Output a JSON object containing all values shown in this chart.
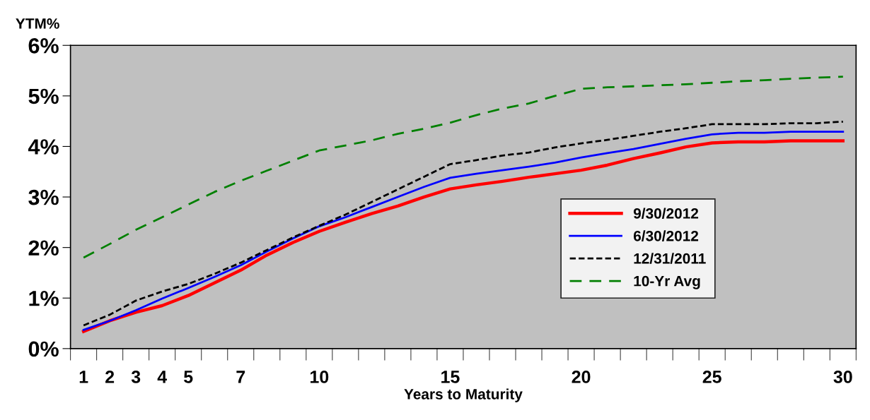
{
  "chart_data": {
    "type": "line",
    "ylabel": "YTM%",
    "xlabel": "Years to Maturity",
    "categories": [
      "1",
      "2",
      "3",
      "4",
      "5",
      null,
      "7",
      null,
      null,
      "10",
      null,
      null,
      null,
      null,
      "15",
      null,
      null,
      null,
      null,
      "20",
      null,
      null,
      null,
      null,
      "25",
      null,
      null,
      null,
      null,
      "30"
    ],
    "ylim": [
      0,
      6
    ],
    "yticks": [
      {
        "value": 0,
        "label": "0%"
      },
      {
        "value": 1,
        "label": "1%"
      },
      {
        "value": 2,
        "label": "2%"
      },
      {
        "value": 3,
        "label": "3%"
      },
      {
        "value": 4,
        "label": "4%"
      },
      {
        "value": 5,
        "label": "5%"
      },
      {
        "value": 6,
        "label": "6%"
      }
    ],
    "grid": false,
    "legend": "right",
    "marker": "none",
    "series": [
      {
        "name": "9/30/2012",
        "color": "#ff0000",
        "line_style": "solid",
        "values": [
          0.34,
          0.55,
          0.72,
          0.85,
          1.05,
          1.3,
          1.55,
          1.85,
          2.1,
          2.32,
          2.5,
          2.67,
          2.82,
          3.0,
          3.16,
          3.24,
          3.31,
          3.39,
          3.46,
          3.53,
          3.63,
          3.76,
          3.87,
          3.99,
          4.07,
          4.09,
          4.09,
          4.11,
          4.11,
          4.11
        ]
      },
      {
        "name": "6/30/2012",
        "color": "#0000ff",
        "line_style": "solid",
        "values": [
          0.37,
          0.55,
          0.76,
          0.99,
          1.2,
          1.42,
          1.65,
          1.92,
          2.18,
          2.42,
          2.6,
          2.8,
          3.0,
          3.2,
          3.38,
          3.46,
          3.53,
          3.6,
          3.68,
          3.78,
          3.87,
          3.95,
          4.05,
          4.15,
          4.24,
          4.27,
          4.27,
          4.29,
          4.29,
          4.29
        ]
      },
      {
        "name": "12/31/2011",
        "color": "#000000",
        "line_style": "dashed",
        "values": [
          0.46,
          0.67,
          0.95,
          1.13,
          1.28,
          1.48,
          1.7,
          1.95,
          2.2,
          2.43,
          2.65,
          2.9,
          3.15,
          3.4,
          3.65,
          3.73,
          3.82,
          3.88,
          3.98,
          4.06,
          4.13,
          4.21,
          4.29,
          4.36,
          4.44,
          4.44,
          4.44,
          4.46,
          4.46,
          4.49
        ]
      },
      {
        "name": "10-Yr Avg",
        "color": "#008000",
        "line_style": "dashed",
        "values": [
          1.8,
          2.07,
          2.35,
          2.6,
          2.85,
          3.1,
          3.32,
          3.52,
          3.72,
          3.92,
          4.02,
          4.12,
          4.25,
          4.35,
          4.47,
          4.62,
          4.75,
          4.85,
          5.0,
          5.14,
          5.17,
          5.19,
          5.21,
          5.23,
          5.26,
          5.29,
          5.31,
          5.34,
          5.36,
          5.38
        ]
      }
    ]
  }
}
